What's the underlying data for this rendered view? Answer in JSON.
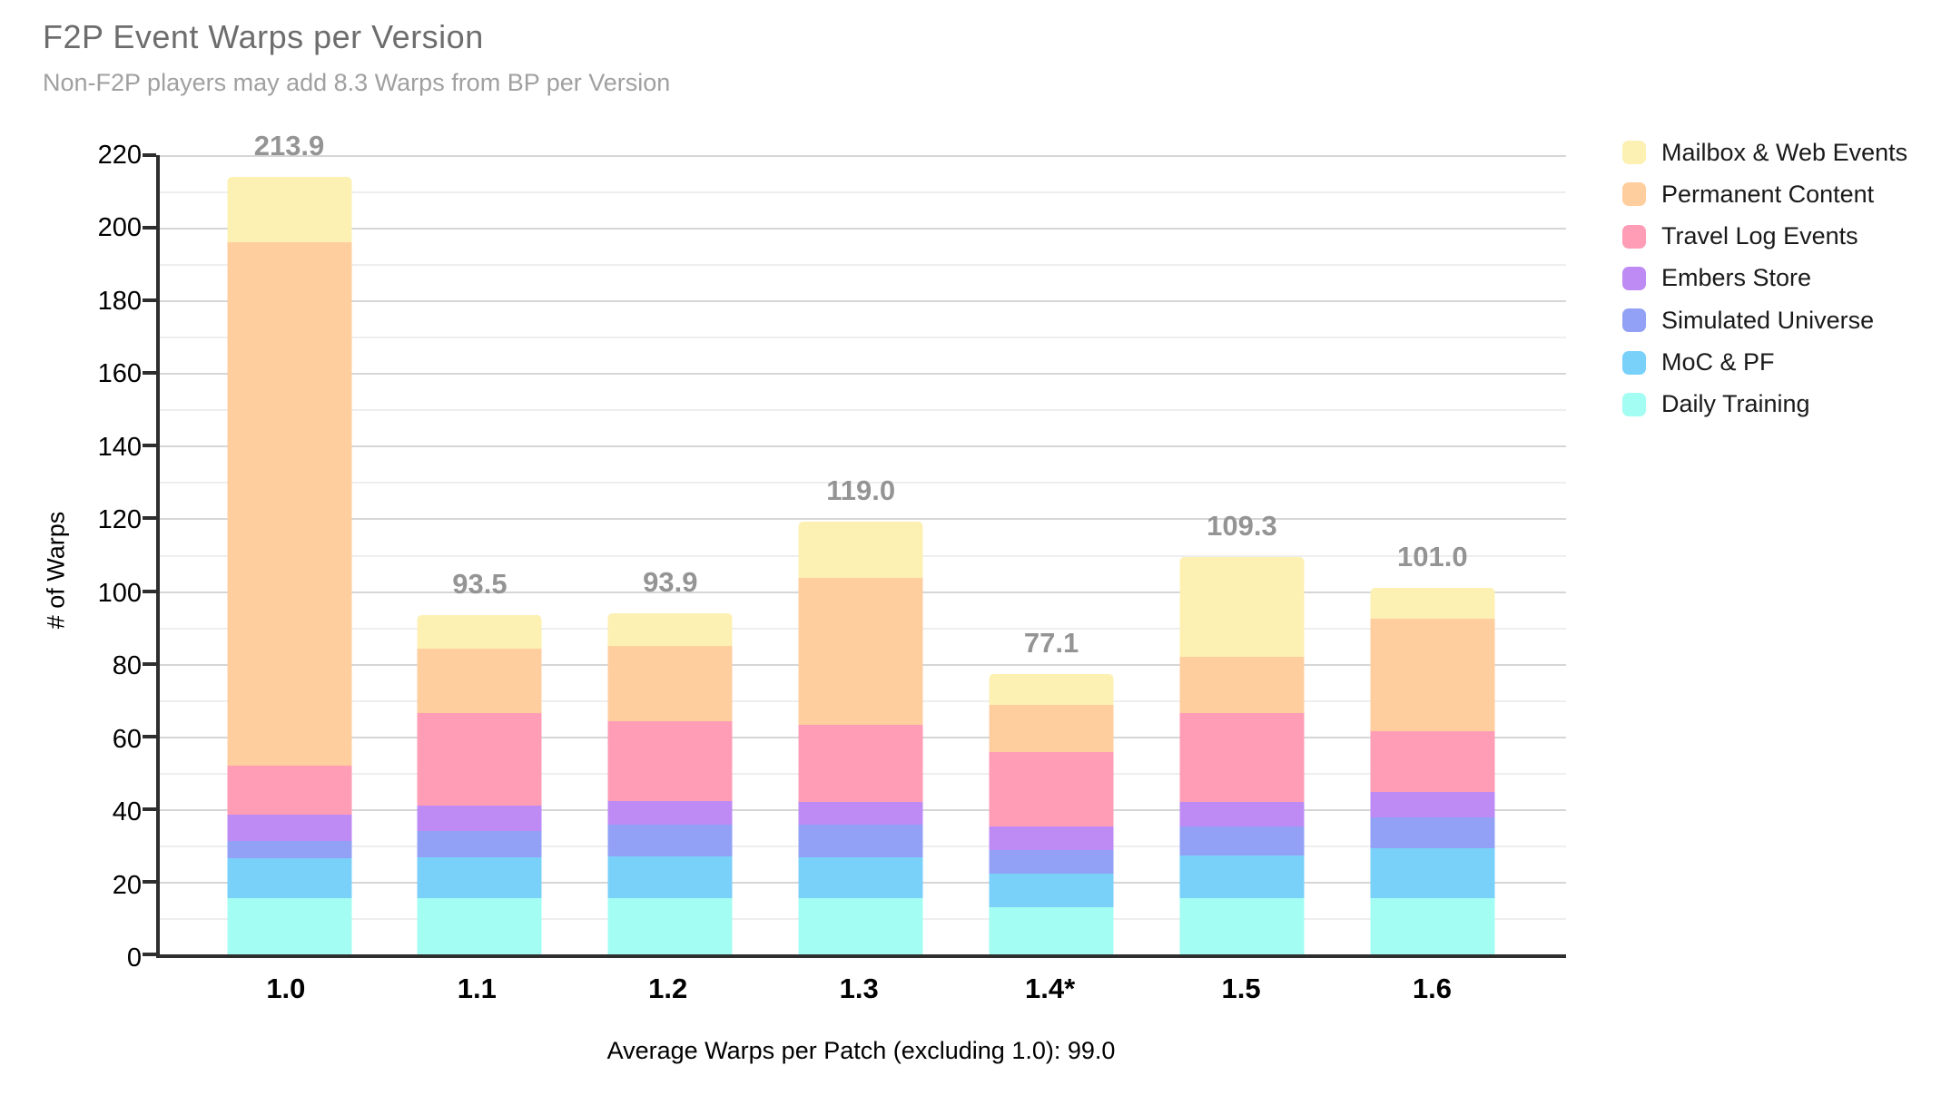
{
  "header": {
    "title": "F2P Event Warps per Version",
    "subtitle": "Non-F2P players may add 8.3 Warps from BP per Version"
  },
  "chart_data": {
    "type": "bar",
    "stacked": true,
    "title": "F2P Event Warps per Version",
    "subtitle": "Non-F2P players may add 8.3 Warps from BP per Version",
    "categories": [
      "1.0",
      "1.1",
      "1.2",
      "1.3",
      "1.4*",
      "1.5",
      "1.6"
    ],
    "totals": [
      213.9,
      93.5,
      93.9,
      119.0,
      77.1,
      109.3,
      101.0
    ],
    "total_labels": [
      "213.9",
      "93.5",
      "93.9",
      "119.0",
      "77.1",
      "109.3",
      "101.0"
    ],
    "series": [
      {
        "name": "Daily Training",
        "color": "#a3fdf2",
        "values": [
          15.6,
          15.6,
          15.6,
          15.6,
          13.0,
          15.6,
          15.6
        ]
      },
      {
        "name": "MoC & PF",
        "color": "#79d1fa",
        "values": [
          10.8,
          11.2,
          11.4,
          11.2,
          9.2,
          11.6,
          13.6
        ]
      },
      {
        "name": "Simulated Universe",
        "color": "#92a1f5",
        "values": [
          4.8,
          7.2,
          8.6,
          8.8,
          6.6,
          8.0,
          8.6
        ]
      },
      {
        "name": "Embers Store",
        "color": "#be8bf5",
        "values": [
          7.2,
          7.0,
          6.7,
          6.4,
          6.3,
          6.8,
          6.9
        ]
      },
      {
        "name": "Travel Log Events",
        "color": "#ff9db6",
        "values": [
          13.6,
          25.4,
          22.0,
          21.1,
          20.7,
          24.5,
          16.8
        ]
      },
      {
        "name": "Permanent Content",
        "color": "#ffce9f",
        "values": [
          144.1,
          17.7,
          20.5,
          40.5,
          13.0,
          15.5,
          30.8
        ]
      },
      {
        "name": "Mailbox & Web Events",
        "color": "#fcf0b3",
        "values": [
          17.8,
          9.4,
          9.1,
          15.4,
          8.3,
          27.3,
          8.7
        ]
      }
    ],
    "legend_order_top_to_bottom": [
      "Mailbox & Web Events",
      "Permanent Content",
      "Travel Log Events",
      "Embers Store",
      "Simulated Universe",
      "MoC & PF",
      "Daily Training"
    ],
    "legend_position": "right",
    "ylabel": "# of Warps",
    "ylim": [
      0,
      220
    ],
    "y_major_step": 20,
    "y_minor_step": 10,
    "grid": true,
    "footer": "Average Warps per Patch (excluding 1.0): 99.0"
  },
  "colors": {
    "title_text": "#6d6d6d",
    "subtitle_text": "#a0a0a0",
    "total_label_text": "#949494",
    "axis_line": "#2e2e2e",
    "major_gridline": "#d6d6d6",
    "minor_gridline": "#eeeeee",
    "background": "#ffffff"
  }
}
